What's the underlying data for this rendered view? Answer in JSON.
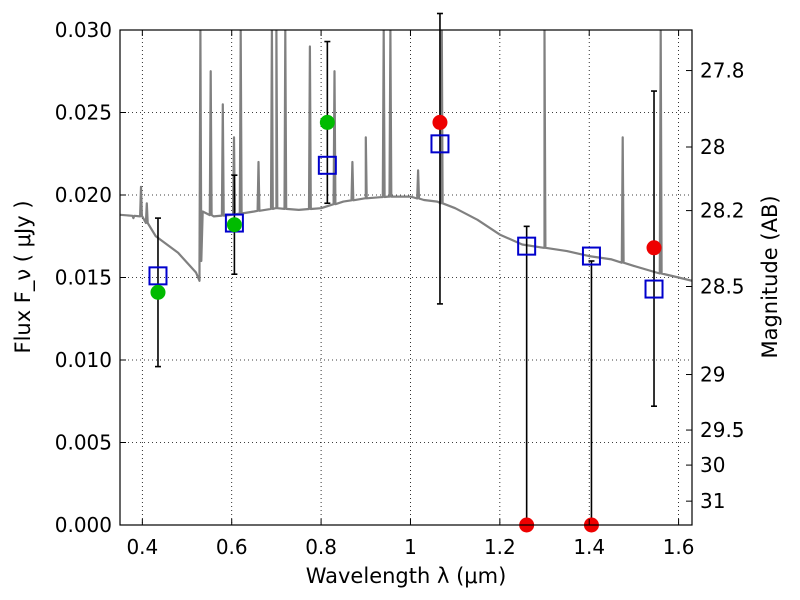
{
  "chart_data": {
    "type": "scatter",
    "xlabel": "Wavelength  λ (μm)",
    "ylabel": "Flux  F_ν  ( μJy )",
    "y2label": "Magnitude (AB)",
    "xlim": [
      0.35,
      1.63
    ],
    "ylim": [
      0.0,
      0.03
    ],
    "grid": true,
    "x_ticks": [
      0.4,
      0.6,
      0.8,
      1.0,
      1.2,
      1.4,
      1.6
    ],
    "x_tick_labels": [
      "0.4",
      "0.6",
      "0.8",
      "1",
      "1.2",
      "1.4",
      "1.6"
    ],
    "y_ticks": [
      0.0,
      0.005,
      0.01,
      0.015,
      0.02,
      0.025,
      0.03
    ],
    "y_tick_labels": [
      "0.000",
      "0.005",
      "0.010",
      "0.015",
      "0.020",
      "0.025",
      "0.030"
    ],
    "mag_ticks": [
      27.8,
      28.0,
      28.2,
      28.5,
      29.0,
      29.5,
      30.0,
      31.0
    ],
    "mag_tick_labels": [
      "27.8",
      "28",
      "28.2",
      "28.5",
      "29",
      "29.5",
      "30",
      "31"
    ],
    "series": [
      {
        "kind": "model-spectrum",
        "color": "#808080",
        "continuum": [
          [
            0.35,
            0.0188
          ],
          [
            0.4,
            0.0187
          ],
          [
            0.43,
            0.0175
          ],
          [
            0.48,
            0.0165
          ],
          [
            0.52,
            0.0153
          ],
          [
            0.528,
            0.0148
          ],
          [
            0.535,
            0.019
          ],
          [
            0.56,
            0.0187
          ],
          [
            0.6,
            0.0188
          ],
          [
            0.65,
            0.019
          ],
          [
            0.7,
            0.0192
          ],
          [
            0.75,
            0.0191
          ],
          [
            0.8,
            0.0192
          ],
          [
            0.85,
            0.0196
          ],
          [
            0.9,
            0.0198
          ],
          [
            0.95,
            0.0199
          ],
          [
            1.0,
            0.0199
          ],
          [
            1.03,
            0.0197
          ],
          [
            1.06,
            0.0196
          ],
          [
            1.1,
            0.0192
          ],
          [
            1.15,
            0.0185
          ],
          [
            1.2,
            0.0176
          ],
          [
            1.25,
            0.017
          ],
          [
            1.3,
            0.0168
          ],
          [
            1.35,
            0.0166
          ],
          [
            1.4,
            0.0163
          ],
          [
            1.45,
            0.0161
          ],
          [
            1.5,
            0.0157
          ],
          [
            1.55,
            0.0153
          ],
          [
            1.6,
            0.015
          ],
          [
            1.63,
            0.0148
          ]
        ],
        "lines": [
          [
            0.38,
            0.0186
          ],
          [
            0.397,
            0.0205
          ],
          [
            0.41,
            0.0195
          ],
          [
            0.53,
            0.03
          ],
          [
            0.553,
            0.0275
          ],
          [
            0.58,
            0.0255
          ],
          [
            0.605,
            0.0235
          ],
          [
            0.62,
            0.03
          ],
          [
            0.66,
            0.022
          ],
          [
            0.69,
            0.03
          ],
          [
            0.7,
            0.03
          ],
          [
            0.72,
            0.03
          ],
          [
            0.775,
            0.029
          ],
          [
            0.83,
            0.0275
          ],
          [
            0.87,
            0.022
          ],
          [
            0.9,
            0.0235
          ],
          [
            0.94,
            0.03
          ],
          [
            0.955,
            0.03
          ],
          [
            1.017,
            0.0215
          ],
          [
            1.07,
            0.03
          ],
          [
            1.3,
            0.03
          ],
          [
            1.475,
            0.0235
          ],
          [
            1.56,
            0.03
          ]
        ]
      },
      {
        "kind": "model-photometry",
        "marker": "open-square",
        "color": "#0000cc",
        "x": [
          0.435,
          0.606,
          0.814,
          1.066,
          1.26,
          1.405,
          1.545
        ],
        "y": [
          0.0151,
          0.0183,
          0.0218,
          0.0231,
          0.0169,
          0.0163,
          0.0143
        ]
      },
      {
        "kind": "detections",
        "marker": "filled-circle",
        "color": "#00bb00",
        "x": [
          0.435,
          0.606,
          0.814
        ],
        "y": [
          0.0141,
          0.0182,
          0.0244
        ],
        "err_low": [
          0.0096,
          0.0152,
          0.0195
        ],
        "err_high": [
          0.0186,
          0.0212,
          0.0293
        ]
      },
      {
        "kind": "non-detections",
        "marker": "filled-circle",
        "color": "#ee0000",
        "x": [
          1.066,
          1.26,
          1.405,
          1.545
        ],
        "y": [
          0.0244,
          0.0,
          0.0,
          0.0168
        ],
        "err_low": [
          0.0134,
          0.0,
          0.0,
          0.0072
        ],
        "err_high": [
          0.031,
          0.0181,
          0.016,
          0.0263
        ]
      }
    ]
  }
}
